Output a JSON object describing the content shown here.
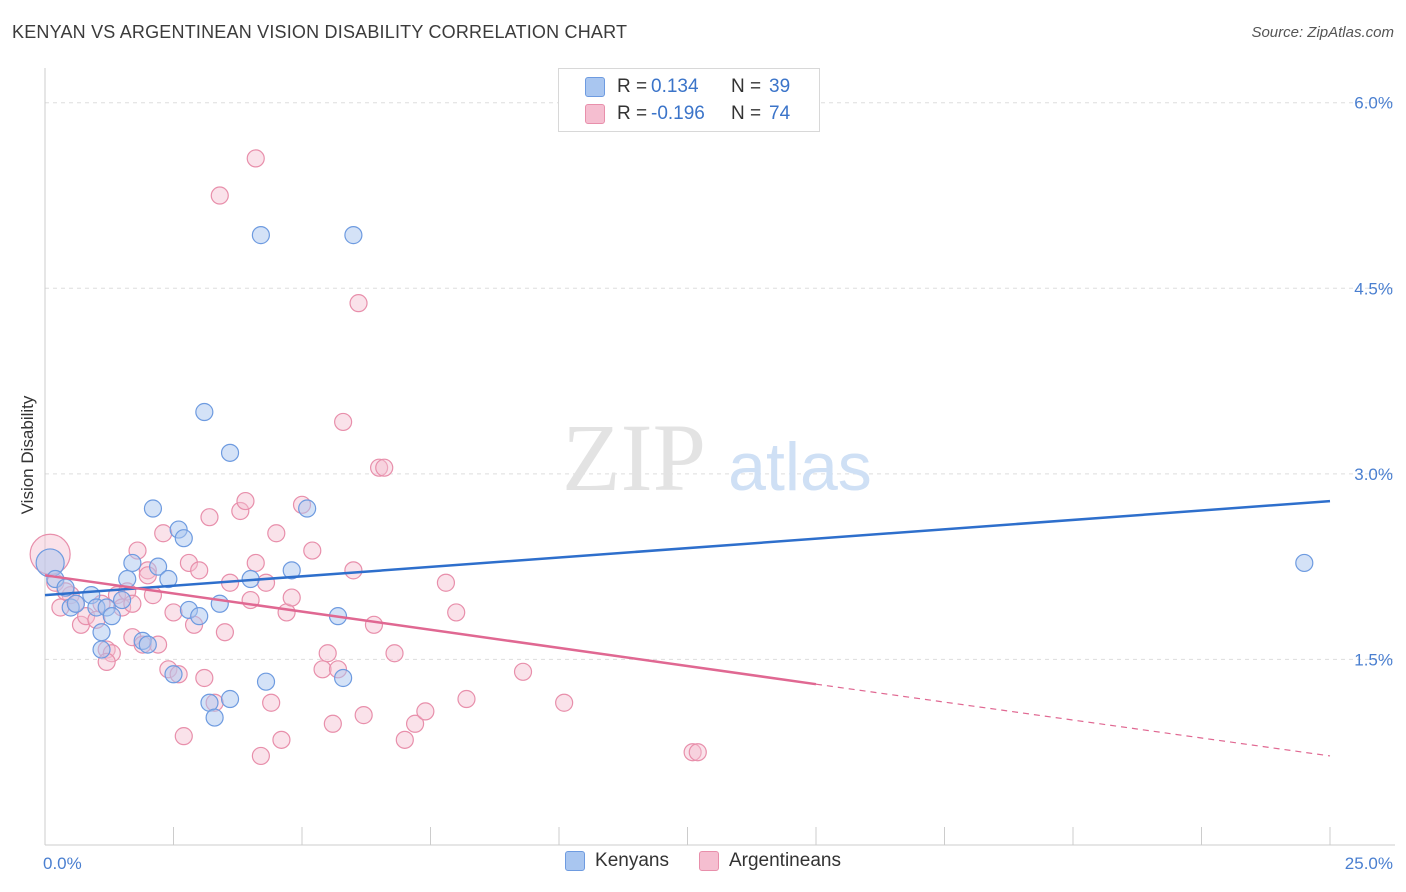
{
  "header": {
    "title": "KENYAN VS ARGENTINEAN VISION DISABILITY CORRELATION CHART",
    "source": "Source: ZipAtlas.com"
  },
  "watermark": {
    "zip": "ZIP",
    "atlas": "atlas"
  },
  "legend": {
    "rows": [
      {
        "r_label": "R =",
        "r_value": "0.134",
        "n_label": "N =",
        "n_value": "39"
      },
      {
        "r_label": "R =",
        "r_value": "-0.196",
        "n_label": "N =",
        "n_value": "74"
      }
    ]
  },
  "bottom_legend": {
    "items": [
      "Kenyans",
      "Argentineans"
    ]
  },
  "colors": {
    "kenyans_fill": "#a9c6f0",
    "kenyans_stroke": "#6e9be0",
    "kenyans_line": "#2e6fcc",
    "argentineans_fill": "#f5bed0",
    "argentineans_stroke": "#e88fab",
    "argentineans_line": "#e06892",
    "grid": "#dddddd",
    "tick_label": "#4a7fd0"
  },
  "chart_data": {
    "type": "scatter",
    "title": "KENYAN VS ARGENTINEAN VISION DISABILITY CORRELATION CHART",
    "ylabel": "Vision Disability",
    "xlabel": "",
    "xlim": [
      0,
      25
    ],
    "ylim": [
      0,
      6.2
    ],
    "x_tick_labels": [
      {
        "value": 0,
        "label": "0.0%"
      },
      {
        "value": 25,
        "label": "25.0%"
      }
    ],
    "y_ticks": [
      {
        "value": 1.5,
        "label": "1.5%"
      },
      {
        "value": 3.0,
        "label": "3.0%"
      },
      {
        "value": 4.5,
        "label": "4.5%"
      },
      {
        "value": 6.0,
        "label": "6.0%"
      }
    ],
    "grid": true,
    "legend_position": "top-center",
    "series": [
      {
        "name": "Kenyans",
        "r": 0.134,
        "n": 39,
        "trend": {
          "x": [
            0,
            25
          ],
          "y": [
            2.02,
            2.78
          ]
        },
        "points": [
          [
            0.1,
            2.28
          ],
          [
            0.2,
            2.15
          ],
          [
            0.4,
            2.08
          ],
          [
            0.5,
            1.92
          ],
          [
            0.6,
            1.95
          ],
          [
            0.9,
            2.02
          ],
          [
            1.0,
            1.92
          ],
          [
            1.1,
            1.58
          ],
          [
            1.1,
            1.72
          ],
          [
            1.2,
            1.92
          ],
          [
            1.3,
            1.85
          ],
          [
            1.5,
            1.98
          ],
          [
            1.6,
            2.15
          ],
          [
            1.7,
            2.28
          ],
          [
            1.9,
            1.65
          ],
          [
            2.0,
            1.62
          ],
          [
            2.1,
            2.72
          ],
          [
            2.2,
            2.25
          ],
          [
            2.4,
            2.15
          ],
          [
            2.5,
            1.38
          ],
          [
            2.6,
            2.55
          ],
          [
            2.7,
            2.48
          ],
          [
            2.8,
            1.9
          ],
          [
            3.0,
            1.85
          ],
          [
            3.1,
            3.5
          ],
          [
            3.2,
            1.15
          ],
          [
            3.3,
            1.03
          ],
          [
            3.4,
            1.95
          ],
          [
            3.6,
            1.18
          ],
          [
            3.6,
            3.17
          ],
          [
            4.0,
            2.15
          ],
          [
            4.2,
            4.93
          ],
          [
            4.3,
            1.32
          ],
          [
            4.8,
            2.22
          ],
          [
            5.1,
            2.72
          ],
          [
            5.7,
            1.85
          ],
          [
            5.8,
            1.35
          ],
          [
            6.0,
            4.93
          ],
          [
            24.5,
            2.28
          ]
        ]
      },
      {
        "name": "Argentineans",
        "r": -0.196,
        "n": 74,
        "trend": {
          "x": [
            0,
            15
          ],
          "y": [
            2.18,
            1.3
          ]
        },
        "trend_dashed": {
          "x": [
            15,
            25
          ],
          "y": [
            1.3,
            0.72
          ]
        },
        "points": [
          [
            0.1,
            2.35
          ],
          [
            0.2,
            2.12
          ],
          [
            0.3,
            1.92
          ],
          [
            0.5,
            2.02
          ],
          [
            0.6,
            1.95
          ],
          [
            0.7,
            1.78
          ],
          [
            0.8,
            1.85
          ],
          [
            1.0,
            1.82
          ],
          [
            1.2,
            1.58
          ],
          [
            1.1,
            1.95
          ],
          [
            1.3,
            1.55
          ],
          [
            1.4,
            2.02
          ],
          [
            1.5,
            1.92
          ],
          [
            1.6,
            2.05
          ],
          [
            1.7,
            1.68
          ],
          [
            1.8,
            2.38
          ],
          [
            1.9,
            1.62
          ],
          [
            2.0,
            2.22
          ],
          [
            2.1,
            2.02
          ],
          [
            2.2,
            1.62
          ],
          [
            2.3,
            2.52
          ],
          [
            2.4,
            1.42
          ],
          [
            2.5,
            1.88
          ],
          [
            2.6,
            1.38
          ],
          [
            2.7,
            0.88
          ],
          [
            2.8,
            2.28
          ],
          [
            2.9,
            1.78
          ],
          [
            3.0,
            2.22
          ],
          [
            3.1,
            1.35
          ],
          [
            3.2,
            2.65
          ],
          [
            3.3,
            1.15
          ],
          [
            3.4,
            5.25
          ],
          [
            3.5,
            1.72
          ],
          [
            3.6,
            2.12
          ],
          [
            3.8,
            2.7
          ],
          [
            3.9,
            2.78
          ],
          [
            4.0,
            1.98
          ],
          [
            4.1,
            2.28
          ],
          [
            4.2,
            0.72
          ],
          [
            4.3,
            2.12
          ],
          [
            4.4,
            1.15
          ],
          [
            4.5,
            2.52
          ],
          [
            4.6,
            0.85
          ],
          [
            4.7,
            1.88
          ],
          [
            4.8,
            2.0
          ],
          [
            5.0,
            2.75
          ],
          [
            5.2,
            2.38
          ],
          [
            5.4,
            1.42
          ],
          [
            5.5,
            1.55
          ],
          [
            5.6,
            0.98
          ],
          [
            5.7,
            1.42
          ],
          [
            5.8,
            3.42
          ],
          [
            6.0,
            2.22
          ],
          [
            6.1,
            4.38
          ],
          [
            6.2,
            1.05
          ],
          [
            6.4,
            1.78
          ],
          [
            6.5,
            3.05
          ],
          [
            6.6,
            3.05
          ],
          [
            6.8,
            1.55
          ],
          [
            7.0,
            0.85
          ],
          [
            7.2,
            0.98
          ],
          [
            7.4,
            1.08
          ],
          [
            7.8,
            2.12
          ],
          [
            8.0,
            1.88
          ],
          [
            8.2,
            1.18
          ],
          [
            9.3,
            1.4
          ],
          [
            10.1,
            1.15
          ],
          [
            12.6,
            0.75
          ],
          [
            12.7,
            0.75
          ],
          [
            4.1,
            5.55
          ],
          [
            1.2,
            1.48
          ],
          [
            1.7,
            1.95
          ],
          [
            0.4,
            2.05
          ],
          [
            2.0,
            2.18
          ]
        ]
      }
    ]
  }
}
